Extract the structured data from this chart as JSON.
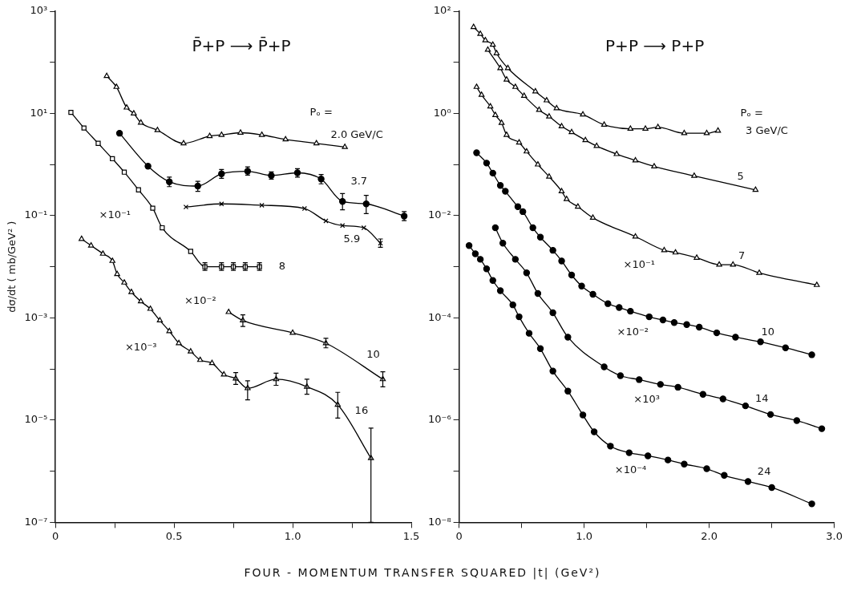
{
  "chart_data": [
    {
      "type": "line",
      "title": "P̄+P ⟶ P̄+P",
      "xlabel": "FOUR - MOMENTUM TRANSFER SQUARED |t| (GeV²)",
      "ylabel": "dσ/dt ( mb/GeV² )",
      "log": "y",
      "grid": false,
      "legend": false,
      "line_style": "solid",
      "xlim": [
        0,
        1.5
      ],
      "xticks": [
        0,
        {
          "value": 0.25,
          "label": null
        },
        0.5,
        {
          "value": 0.75,
          "label": null
        },
        {
          "value": 1,
          "label": "1.0"
        },
        {
          "value": 1.25,
          "label": null
        },
        1.5
      ],
      "ylim": [
        1e-07,
        1000
      ],
      "yticks": [
        {
          "value": 1e-07,
          "label": "10⁻⁷"
        },
        {
          "value": 1e-06,
          "label": null
        },
        {
          "value": 1e-05,
          "label": "10⁻⁵"
        },
        {
          "value": 0.0001,
          "label": null
        },
        {
          "value": 0.001,
          "label": "10⁻³"
        },
        {
          "value": 0.01,
          "label": null
        },
        {
          "value": 0.1,
          "label": "10⁻¹"
        },
        {
          "value": 1,
          "label": null
        },
        {
          "value": 10,
          "label": "10¹"
        },
        {
          "value": 100,
          "label": null
        },
        {
          "value": 1000,
          "label": "10³"
        }
      ],
      "series": [
        {
          "name": "2.0 GeV/C",
          "color": "#000000",
          "marker": "triangle",
          "x": [
            0.216,
            0.257,
            0.3,
            0.33,
            0.36,
            0.43,
            0.54,
            0.65,
            0.7,
            0.78,
            0.87,
            0.97,
            1.1,
            1.22
          ],
          "values": [
            54,
            33,
            13,
            10,
            6.6,
            4.7,
            2.6,
            3.6,
            3.8,
            4.2,
            3.8,
            3.1,
            2.6,
            2.2
          ]
        },
        {
          "name": "3.7",
          "color": "#000000",
          "marker": "circle",
          "x": [
            0.27,
            0.39,
            0.48,
            0.6,
            0.7,
            0.81,
            0.91,
            1.02,
            1.12,
            1.21,
            1.31,
            1.47
          ],
          "values": [
            4.1,
            0.93,
            0.46,
            0.38,
            0.66,
            0.74,
            0.61,
            0.69,
            0.52,
            0.19,
            0.17,
            0.098
          ],
          "errors": [
            null,
            null,
            [
              0.37,
              0.57
            ],
            [
              0.3,
              0.47
            ],
            [
              0.54,
              0.8
            ],
            [
              0.62,
              0.9
            ],
            [
              0.52,
              0.72
            ],
            [
              0.57,
              0.83
            ],
            [
              0.42,
              0.64
            ],
            [
              0.13,
              0.27
            ],
            [
              0.11,
              0.25
            ],
            [
              0.08,
              0.12
            ]
          ]
        },
        {
          "name": "5.9",
          "color": "#000000",
          "marker": "cross",
          "x": [
            0.55,
            0.7,
            0.87,
            1.05,
            1.14,
            1.21,
            1.3,
            1.37
          ],
          "values": [
            0.148,
            0.17,
            0.16,
            0.138,
            0.079,
            0.064,
            0.058,
            0.029
          ],
          "errors": [
            null,
            null,
            null,
            null,
            null,
            null,
            null,
            [
              0.024,
              0.035
            ]
          ]
        },
        {
          "name": "8",
          "color": "#000000",
          "marker": "square",
          "x": [
            0.065,
            0.12,
            0.18,
            0.24,
            0.29,
            0.35,
            0.41,
            0.45,
            0.57,
            0.63,
            0.7,
            0.75,
            0.8,
            0.86
          ],
          "values": [
            10.5,
            5.2,
            2.6,
            1.3,
            0.71,
            0.32,
            0.14,
            0.058,
            0.02,
            0.01,
            0.01,
            0.01,
            0.01,
            0.01
          ],
          "errors": [
            null,
            null,
            null,
            null,
            null,
            null,
            null,
            null,
            null,
            [
              0.0085,
              0.012
            ],
            [
              0.0085,
              0.012
            ],
            [
              0.0085,
              0.012
            ],
            [
              0.0085,
              0.012
            ],
            [
              0.0085,
              0.012
            ]
          ]
        },
        {
          "name": "10",
          "color": "#000000",
          "marker": "triangle",
          "x": [
            0.73,
            0.79,
            1.0,
            1.14,
            1.38
          ],
          "values": [
            0.0013,
            0.00089,
            0.00051,
            0.00032,
            6.3e-05
          ],
          "errors": [
            null,
            [
              0.00068,
              0.00115
            ],
            null,
            [
              0.00026,
              0.0004
            ],
            [
              4.5e-05,
              8.8e-05
            ]
          ]
        },
        {
          "name": "16",
          "color": "#000000",
          "marker": "triangle",
          "x": [
            0.11,
            0.15,
            0.2,
            0.24,
            0.26,
            0.29,
            0.32,
            0.36,
            0.4,
            0.44,
            0.48,
            0.52,
            0.57,
            0.61,
            0.66,
            0.71,
            0.76,
            0.81,
            0.93,
            1.06,
            1.19,
            1.33
          ],
          "values": [
            0.035,
            0.026,
            0.018,
            0.013,
            0.0072,
            0.0049,
            0.0032,
            0.0021,
            0.0015,
            0.00089,
            0.00055,
            0.00032,
            0.00022,
            0.00015,
            0.00013,
            7.8e-05,
            6.5e-05,
            4.2e-05,
            6.3e-05,
            4.5e-05,
            2e-05,
            1.8e-06
          ],
          "errors": [
            null,
            null,
            null,
            null,
            null,
            null,
            null,
            null,
            null,
            null,
            null,
            null,
            null,
            null,
            null,
            null,
            [
              5e-05,
              8.5e-05
            ],
            [
              2.5e-05,
              5.9e-05
            ],
            [
              4.8e-05,
              8.3e-05
            ],
            [
              3.2e-05,
              6.3e-05
            ],
            [
              1.1e-05,
              3.5e-05
            ],
            [
              1e-07,
              7e-06
            ]
          ]
        }
      ],
      "annotations": [
        "Pₒ =",
        "×10⁻¹",
        "×10⁻²",
        "×10⁻³"
      ]
    },
    {
      "type": "line",
      "title": "P+P ⟶ P+P",
      "log": "y",
      "grid": false,
      "legend": false,
      "line_style": "solid",
      "xlim": [
        0,
        3
      ],
      "xticks": [
        0,
        {
          "value": 0.5,
          "label": null
        },
        {
          "value": 1,
          "label": "1.0"
        },
        {
          "value": 1.5,
          "label": null
        },
        {
          "value": 2,
          "label": "2.0"
        },
        {
          "value": 2.5,
          "label": null
        },
        {
          "value": 3,
          "label": "3.0"
        }
      ],
      "ylim": [
        1e-08,
        100
      ],
      "yticks": [
        {
          "value": 1e-08,
          "label": "10⁻⁸"
        },
        {
          "value": 1e-07,
          "label": null
        },
        {
          "value": 1e-06,
          "label": "10⁻⁶"
        },
        {
          "value": 1e-05,
          "label": null
        },
        {
          "value": 0.0001,
          "label": "10⁻⁴"
        },
        {
          "value": 0.001,
          "label": null
        },
        {
          "value": 0.01,
          "label": "10⁻²"
        },
        {
          "value": 0.1,
          "label": null
        },
        {
          "value": 1,
          "label": "10⁰"
        },
        {
          "value": 10,
          "label": null
        },
        {
          "value": 100,
          "label": "10²"
        }
      ],
      "series": [
        {
          "name": "3 GeV/C",
          "color": "#000000",
          "marker": "triangle",
          "x": [
            0.116,
            0.17,
            0.21,
            0.27,
            0.3,
            0.39,
            0.61,
            0.7,
            0.78,
            0.99,
            1.16,
            1.37,
            1.49,
            1.59,
            1.8,
            1.98,
            2.07
          ],
          "values": [
            49,
            36,
            27,
            22,
            15,
            7.7,
            2.7,
            1.8,
            1.26,
            0.95,
            0.6,
            0.5,
            0.5,
            0.54,
            0.41,
            0.41,
            0.46
          ]
        },
        {
          "name": "5",
          "color": "#000000",
          "marker": "triangle",
          "x": [
            0.23,
            0.33,
            0.38,
            0.45,
            0.52,
            0.64,
            0.72,
            0.82,
            0.9,
            1.01,
            1.1,
            1.26,
            1.41,
            1.56,
            1.88,
            2.37
          ],
          "values": [
            17.6,
            7.7,
            4.6,
            3.3,
            2.2,
            1.17,
            0.87,
            0.56,
            0.43,
            0.3,
            0.23,
            0.16,
            0.12,
            0.092,
            0.06,
            0.032
          ]
        },
        {
          "name": "7",
          "color": "#000000",
          "marker": "triangle",
          "x": [
            0.14,
            0.18,
            0.25,
            0.29,
            0.34,
            0.38,
            0.48,
            0.54,
            0.63,
            0.72,
            0.82,
            0.86,
            0.95,
            1.07,
            1.41,
            1.64,
            1.73,
            1.9,
            2.08,
            2.19,
            2.4,
            2.86
          ],
          "values": [
            3.3,
            2.3,
            1.37,
            0.93,
            0.65,
            0.38,
            0.27,
            0.18,
            0.1,
            0.058,
            0.03,
            0.021,
            0.015,
            0.0091,
            0.0039,
            0.0021,
            0.0019,
            0.0015,
            0.0011,
            0.0011,
            0.00076,
            0.00044
          ]
        },
        {
          "name": "10",
          "color": "#000000",
          "marker": "circle",
          "x": [
            0.14,
            0.22,
            0.27,
            0.33,
            0.37,
            0.47,
            0.51,
            0.59,
            0.65,
            0.75,
            0.82,
            0.9,
            0.98,
            1.07,
            1.19,
            1.28,
            1.37,
            1.52,
            1.63,
            1.72,
            1.82,
            1.92,
            2.06,
            2.21,
            2.41,
            2.61,
            2.82
          ],
          "values": [
            0.17,
            0.107,
            0.068,
            0.039,
            0.03,
            0.015,
            0.012,
            0.0058,
            0.0038,
            0.0021,
            0.0013,
            0.00069,
            0.00042,
            0.00029,
            0.00019,
            0.00016,
            0.000135,
            0.000105,
            9.1e-05,
            8.1e-05,
            7.4e-05,
            6.6e-05,
            5.1e-05,
            4.2e-05,
            3.4e-05,
            2.6e-05,
            1.9e-05
          ]
        },
        {
          "name": "14",
          "color": "#000000",
          "marker": "circle",
          "x": [
            0.29,
            0.35,
            0.45,
            0.54,
            0.63,
            0.75,
            0.87,
            1.16,
            1.29,
            1.44,
            1.61,
            1.75,
            1.95,
            2.11,
            2.29,
            2.49,
            2.7,
            2.9
          ],
          "values": [
            0.0058,
            0.0029,
            0.0014,
            0.00076,
            0.0003,
            0.000126,
            4.2e-05,
            1.1e-05,
            7.4e-06,
            6.2e-06,
            5e-06,
            4.4e-06,
            3.2e-06,
            2.6e-06,
            1.9e-06,
            1.29e-06,
            9.8e-07,
            6.8e-07
          ]
        },
        {
          "name": "24",
          "color": "#000000",
          "marker": "circle",
          "x": [
            0.08,
            0.13,
            0.17,
            0.22,
            0.27,
            0.33,
            0.43,
            0.48,
            0.56,
            0.65,
            0.75,
            0.87,
            0.99,
            1.08,
            1.21,
            1.36,
            1.51,
            1.67,
            1.8,
            1.98,
            2.12,
            2.31,
            2.5,
            2.82
          ],
          "values": [
            0.0026,
            0.0018,
            0.0014,
            0.00091,
            0.00054,
            0.00034,
            0.00018,
            0.000105,
            5e-05,
            2.5e-05,
            9.1e-06,
            3.7e-06,
            1.26e-06,
            5.9e-07,
            3.1e-07,
            2.3e-07,
            2e-07,
            1.66e-07,
            1.38e-07,
            1.12e-07,
            8.3e-08,
            6.3e-08,
            4.8e-08,
            2.3e-08
          ]
        }
      ],
      "annotations": [
        "Pₒ =",
        "×10⁻¹",
        "×10⁻²",
        "×10³",
        "×10⁻⁴"
      ]
    }
  ]
}
